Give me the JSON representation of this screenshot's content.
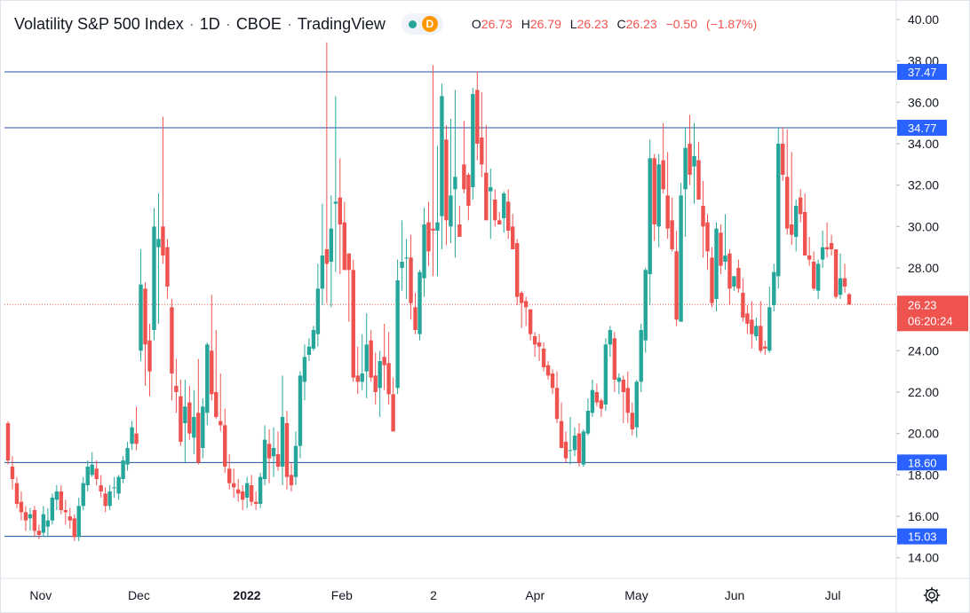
{
  "header": {
    "symbol": "Volatility S&P 500 Index",
    "interval": "1D",
    "exchange": "CBOE",
    "source": "TradingView",
    "badge": "D",
    "ohlc": {
      "o_label": "O",
      "o": "26.73",
      "h_label": "H",
      "h": "26.79",
      "l_label": "L",
      "l": "26.23",
      "c_label": "C",
      "c": "26.23",
      "change": "−0.50",
      "change_pct": "(−1.87%)"
    }
  },
  "colors": {
    "up": "#26a69a",
    "down": "#ef5350",
    "hline": "#1e53a3",
    "tag": "#2962ff",
    "price_tag": "#ef5350"
  },
  "icons": {
    "settings": "gear-icon",
    "market_status": "market-open-dot"
  },
  "chart_data": {
    "type": "candlestick",
    "y_axis": {
      "min": 13,
      "max": 40.9,
      "ticks": [
        "14.00",
        "16.00",
        "18.00",
        "20.00",
        "22.00",
        "24.00",
        "26.00",
        "28.00",
        "30.00",
        "32.00",
        "34.00",
        "36.00",
        "38.00",
        "40.00"
      ]
    },
    "x_axis": {
      "labels": [
        "Nov",
        "Dec",
        "2022",
        "Feb",
        "2",
        "Apr",
        "May",
        "Jun",
        "Jul"
      ],
      "label_dates": [
        "2021-11-01",
        "2021-12-01",
        "2022-01-03",
        "2022-02-01",
        "2022-03-01",
        "2022-04-01",
        "2022-05-02",
        "2022-06-01",
        "2022-07-01"
      ]
    },
    "horizontal_levels": [
      {
        "value": 37.47,
        "label": "37.47"
      },
      {
        "value": 34.77,
        "label": "34.77"
      },
      {
        "value": 18.6,
        "label": "18.60"
      },
      {
        "value": 15.03,
        "label": "15.03"
      }
    ],
    "last_price": {
      "value": 26.23,
      "label": "26.23",
      "countdown": "06:20:24"
    },
    "candles_ohlc": [
      [
        20.5,
        20.6,
        18.5,
        18.7
      ],
      [
        18.4,
        18.9,
        17.3,
        17.8
      ],
      [
        17.6,
        17.9,
        16.4,
        16.6
      ],
      [
        16.7,
        17.2,
        15.8,
        16.2
      ],
      [
        16.2,
        16.5,
        15.3,
        15.8
      ],
      [
        15.9,
        16.4,
        15.3,
        16.1
      ],
      [
        16.3,
        16.5,
        15.0,
        15.3
      ],
      [
        15.3,
        15.6,
        14.9,
        15.1
      ],
      [
        15.2,
        16.5,
        15.0,
        16.1
      ],
      [
        15.5,
        16.4,
        15.0,
        15.8
      ],
      [
        15.8,
        17.1,
        15.6,
        16.9
      ],
      [
        16.8,
        17.5,
        16.3,
        17.2
      ],
      [
        17.2,
        17.5,
        16.1,
        16.3
      ],
      [
        16.3,
        16.8,
        15.6,
        16.2
      ],
      [
        16.0,
        16.4,
        15.4,
        15.8
      ],
      [
        15.9,
        16.1,
        14.8,
        15.0
      ],
      [
        15.0,
        16.9,
        14.8,
        16.5
      ],
      [
        16.5,
        17.9,
        16.3,
        17.6
      ],
      [
        17.5,
        18.7,
        17.2,
        18.4
      ],
      [
        18.0,
        19.1,
        17.9,
        18.5
      ],
      [
        18.3,
        18.7,
        17.5,
        17.8
      ],
      [
        17.5,
        18.0,
        16.9,
        17.2
      ],
      [
        17.1,
        17.4,
        16.2,
        16.5
      ],
      [
        16.5,
        17.5,
        16.3,
        17.2
      ],
      [
        17.4,
        17.9,
        16.9,
        17.4
      ],
      [
        17.1,
        18.0,
        16.8,
        17.9
      ],
      [
        17.8,
        18.9,
        17.6,
        18.7
      ],
      [
        18.5,
        19.6,
        18.2,
        19.3
      ],
      [
        19.5,
        20.6,
        19.2,
        20.3
      ],
      [
        20.0,
        21.3,
        19.2,
        19.5
      ],
      [
        24.0,
        28.9,
        23.5,
        27.2
      ],
      [
        27.0,
        27.3,
        22.3,
        24.3
      ],
      [
        24.5,
        25.3,
        21.8,
        23.0
      ],
      [
        25.0,
        30.9,
        24.5,
        30.0
      ],
      [
        29.0,
        31.6,
        25.3,
        29.4
      ],
      [
        30.0,
        35.3,
        28.2,
        28.6
      ],
      [
        29.0,
        29.4,
        26.5,
        27.1
      ],
      [
        26.1,
        26.5,
        21.6,
        22.9
      ],
      [
        22.3,
        23.6,
        21.0,
        22.0
      ],
      [
        21.8,
        22.6,
        19.4,
        19.6
      ],
      [
        20.5,
        22.6,
        18.6,
        21.3
      ],
      [
        21.5,
        22.3,
        19.7,
        20.0
      ],
      [
        19.8,
        22.1,
        19.0,
        20.8
      ],
      [
        21.0,
        23.6,
        18.5,
        18.6
      ],
      [
        19.3,
        21.7,
        18.8,
        21.3
      ],
      [
        21.0,
        24.4,
        20.4,
        24.3
      ],
      [
        24.0,
        26.7,
        21.6,
        21.9
      ],
      [
        22.0,
        25.0,
        20.7,
        20.8
      ],
      [
        20.6,
        22.9,
        20.1,
        20.4
      ],
      [
        20.4,
        21.2,
        18.1,
        18.4
      ],
      [
        18.3,
        19.0,
        17.3,
        17.6
      ],
      [
        17.6,
        18.3,
        16.9,
        17.4
      ],
      [
        17.3,
        17.8,
        16.7,
        17.1
      ],
      [
        17.2,
        17.5,
        16.3,
        16.8
      ],
      [
        16.9,
        17.9,
        16.4,
        17.6
      ],
      [
        17.5,
        18.0,
        16.5,
        16.7
      ],
      [
        16.7,
        17.2,
        16.3,
        16.6
      ],
      [
        16.6,
        18.1,
        16.4,
        17.9
      ],
      [
        17.8,
        20.4,
        17.5,
        19.7
      ],
      [
        19.5,
        20.2,
        17.6,
        18.8
      ],
      [
        18.9,
        20.3,
        17.9,
        19.3
      ],
      [
        19.0,
        20.1,
        18.2,
        18.4
      ],
      [
        18.4,
        22.8,
        17.5,
        20.8
      ],
      [
        20.5,
        21.1,
        17.3,
        17.9
      ],
      [
        18.0,
        18.6,
        17.2,
        17.5
      ],
      [
        17.9,
        20.1,
        17.5,
        19.4
      ],
      [
        19.4,
        23.0,
        18.8,
        22.8
      ],
      [
        22.5,
        24.3,
        21.6,
        23.7
      ],
      [
        23.8,
        24.6,
        23.5,
        24.2
      ],
      [
        24.1,
        25.2,
        24.0,
        25.0
      ],
      [
        24.8,
        28.2,
        24.2,
        27.0
      ],
      [
        27.0,
        31.1,
        26.2,
        28.6
      ],
      [
        28.9,
        38.9,
        26.3,
        28.2
      ],
      [
        28.3,
        31.5,
        26.1,
        29.9
      ],
      [
        31.1,
        36.3,
        27.8,
        31.2
      ],
      [
        31.4,
        33.3,
        27.7,
        30.1
      ],
      [
        30.2,
        31.2,
        27.9,
        27.9
      ],
      [
        28.7,
        28.5,
        25.4,
        27.9
      ],
      [
        27.9,
        28.4,
        22.5,
        22.7
      ],
      [
        22.8,
        24.2,
        21.9,
        22.5
      ],
      [
        22.5,
        24.8,
        22.1,
        22.9
      ],
      [
        23.0,
        25.8,
        21.7,
        24.3
      ],
      [
        24.5,
        25.0,
        22.5,
        22.7
      ],
      [
        22.8,
        23.9,
        21.4,
        22.0
      ],
      [
        22.2,
        24.0,
        20.8,
        23.5
      ],
      [
        23.7,
        25.3,
        22.1,
        23.3
      ],
      [
        23.4,
        24.9,
        21.4,
        21.9
      ],
      [
        21.9,
        22.7,
        20.1,
        20.1
      ],
      [
        22.2,
        28.4,
        21.9,
        27.4
      ],
      [
        28.0,
        30.3,
        26.9,
        28.3
      ],
      [
        28.5,
        29.4,
        26.5,
        28.5
      ],
      [
        28.5,
        29.6,
        25.5,
        26.3
      ],
      [
        26.1,
        26.8,
        24.8,
        25.0
      ],
      [
        24.8,
        27.9,
        24.5,
        27.8
      ],
      [
        27.5,
        30.9,
        26.6,
        30.1
      ],
      [
        30.2,
        31.2,
        28.1,
        28.8
      ],
      [
        29.9,
        37.8,
        27.6,
        29.8
      ],
      [
        29.8,
        33.9,
        27.6,
        30.2
      ],
      [
        30.5,
        36.9,
        28.9,
        36.3
      ],
      [
        34.2,
        34.9,
        29.1,
        30.3
      ],
      [
        30.0,
        35.2,
        29.2,
        31.5
      ],
      [
        31.8,
        36.6,
        28.5,
        32.4
      ],
      [
        30.1,
        31.0,
        29.5,
        29.5
      ],
      [
        33.0,
        35.1,
        31.6,
        31.8
      ],
      [
        32.5,
        32.6,
        30.3,
        31.0
      ],
      [
        31.9,
        36.7,
        31.3,
        36.4
      ],
      [
        36.6,
        37.5,
        33.2,
        34.0
      ],
      [
        34.3,
        36.5,
        32.4,
        33.0
      ],
      [
        32.6,
        34.9,
        30.3,
        30.3
      ],
      [
        31.7,
        32.8,
        29.4,
        31.9
      ],
      [
        31.3,
        31.8,
        30.0,
        30.3
      ],
      [
        30.3,
        30.7,
        30.1,
        30.1
      ],
      [
        30.4,
        31.7,
        29.7,
        31.6
      ],
      [
        31.2,
        31.8,
        29.4,
        29.8
      ],
      [
        30.0,
        30.6,
        28.9,
        28.9
      ],
      [
        29.2,
        29.4,
        26.2,
        26.6
      ],
      [
        26.8,
        26.9,
        25.1,
        26.3
      ],
      [
        26.4,
        26.6,
        25.2,
        26.1
      ],
      [
        26.0,
        25.9,
        24.5,
        24.8
      ],
      [
        24.7,
        24.9,
        23.7,
        24.3
      ],
      [
        24.4,
        24.8,
        23.5,
        24.2
      ],
      [
        24.1,
        24.4,
        23.0,
        23.2
      ],
      [
        23.3,
        23.5,
        22.6,
        22.8
      ],
      [
        22.9,
        23.1,
        21.9,
        22.2
      ],
      [
        22.2,
        23.0,
        20.5,
        20.7
      ],
      [
        20.6,
        21.5,
        19.3,
        19.3
      ],
      [
        19.6,
        20.1,
        18.6,
        18.8
      ],
      [
        19.2,
        20.8,
        18.5,
        19.2
      ],
      [
        19.2,
        20.3,
        18.9,
        19.9
      ],
      [
        20.0,
        20.5,
        18.4,
        18.6
      ],
      [
        18.5,
        20.2,
        18.4,
        20.1
      ],
      [
        20.0,
        21.7,
        19.9,
        21.1
      ],
      [
        21.0,
        22.6,
        20.8,
        22.1
      ],
      [
        22.0,
        22.4,
        21.3,
        21.5
      ],
      [
        21.6,
        21.7,
        20.8,
        21.2
      ],
      [
        21.4,
        24.6,
        21.1,
        24.3
      ],
      [
        24.3,
        25.2,
        23.7,
        25.0
      ],
      [
        24.6,
        24.9,
        22.0,
        22.6
      ],
      [
        22.5,
        22.9,
        21.9,
        22.7
      ],
      [
        22.6,
        22.8,
        20.5,
        22.0
      ],
      [
        22.2,
        23.0,
        20.5,
        21.0
      ],
      [
        21.0,
        21.5,
        19.9,
        20.2
      ],
      [
        20.3,
        22.6,
        19.8,
        22.5
      ],
      [
        22.5,
        25.3,
        22.0,
        25.0
      ],
      [
        24.5,
        28.0,
        23.9,
        27.9
      ],
      [
        27.7,
        34.2,
        26.2,
        33.3
      ],
      [
        33.3,
        33.5,
        29.3,
        30.1
      ],
      [
        30.0,
        33.5,
        29.0,
        33.0
      ],
      [
        33.2,
        35.0,
        31.6,
        31.8
      ],
      [
        31.5,
        33.6,
        29.4,
        29.9
      ],
      [
        30.3,
        31.4,
        28.8,
        28.9
      ],
      [
        28.8,
        29.8,
        25.2,
        25.5
      ],
      [
        25.4,
        32.1,
        25.4,
        31.5
      ],
      [
        31.8,
        34.8,
        29.5,
        33.8
      ],
      [
        34.0,
        35.4,
        32.0,
        32.5
      ],
      [
        32.9,
        35.0,
        31.1,
        33.4
      ],
      [
        33.2,
        34.1,
        31.3,
        31.3
      ],
      [
        31.0,
        32.2,
        28.5,
        30.0
      ],
      [
        30.2,
        30.6,
        27.9,
        28.8
      ],
      [
        28.5,
        29.0,
        26.1,
        26.3
      ],
      [
        26.5,
        30.2,
        25.9,
        29.9
      ],
      [
        29.7,
        30.1,
        27.7,
        28.1
      ],
      [
        28.3,
        30.6,
        27.9,
        28.6
      ],
      [
        28.7,
        28.9,
        26.2,
        27.0
      ],
      [
        27.1,
        27.6,
        26.9,
        27.6
      ],
      [
        28.0,
        28.4,
        26.8,
        27.0
      ],
      [
        26.8,
        27.5,
        25.4,
        25.6
      ],
      [
        25.8,
        26.2,
        24.8,
        25.3
      ],
      [
        25.5,
        26.4,
        24.1,
        24.8
      ],
      [
        24.7,
        25.6,
        24.5,
        25.2
      ],
      [
        25.2,
        26.4,
        23.9,
        24.0
      ],
      [
        24.2,
        24.5,
        23.8,
        24.1
      ],
      [
        24.0,
        27.1,
        23.9,
        26.1
      ],
      [
        26.2,
        28.2,
        25.9,
        27.8
      ],
      [
        27.6,
        34.8,
        27.0,
        34.0
      ],
      [
        34.0,
        34.8,
        32.2,
        32.5
      ],
      [
        32.4,
        34.7,
        29.6,
        29.9
      ],
      [
        30.1,
        33.6,
        29.1,
        29.6
      ],
      [
        29.5,
        31.3,
        28.8,
        31.0
      ],
      [
        31.4,
        31.8,
        30.2,
        30.6
      ],
      [
        30.7,
        31.6,
        28.6,
        28.6
      ],
      [
        28.6,
        29.5,
        28.1,
        28.4
      ],
      [
        28.3,
        28.8,
        26.9,
        27.0
      ],
      [
        26.9,
        28.4,
        26.5,
        28.2
      ],
      [
        28.4,
        29.8,
        28.0,
        29.0
      ],
      [
        29.0,
        30.2,
        28.5,
        28.9
      ],
      [
        29.2,
        29.6,
        28.6,
        28.9
      ],
      [
        28.9,
        28.7,
        26.5,
        26.6
      ],
      [
        26.7,
        28.7,
        26.5,
        27.5
      ],
      [
        27.5,
        28.2,
        26.8,
        27.1
      ],
      [
        26.73,
        26.79,
        26.23,
        26.23
      ]
    ]
  }
}
